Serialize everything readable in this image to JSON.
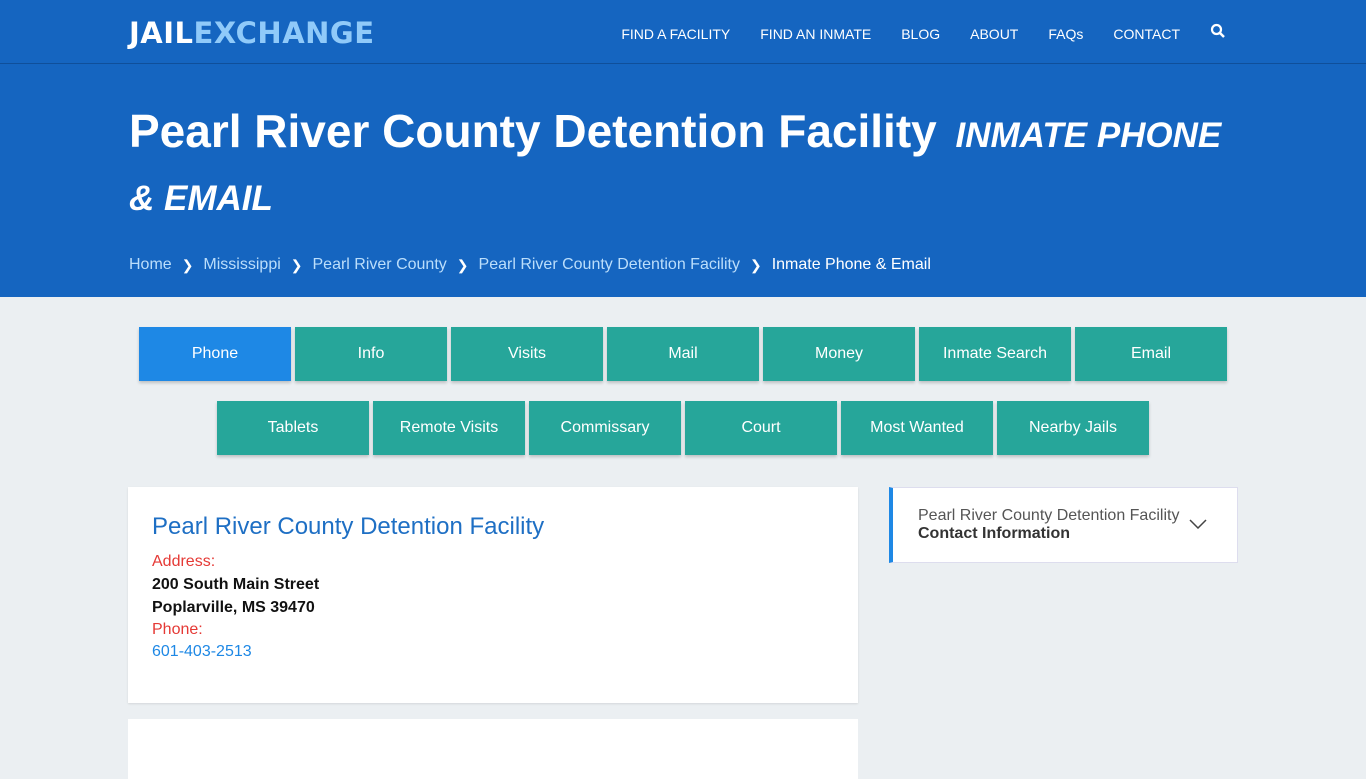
{
  "nav": {
    "logo_a": "JAIL",
    "logo_b": "EXCHANGE",
    "items": [
      "FIND A FACILITY",
      "FIND AN INMATE",
      "BLOG",
      "ABOUT",
      "FAQs",
      "CONTACT"
    ],
    "search_icon": "search-icon"
  },
  "hero": {
    "title": "Pearl River County Detention Facility",
    "subtitle": "INMATE PHONE & EMAIL",
    "breadcrumb": [
      "Home",
      "Mississippi",
      "Pearl River County",
      "Pearl River County Detention Facility"
    ],
    "current": "Inmate Phone & Email"
  },
  "tabs": [
    "Phone",
    "Info",
    "Visits",
    "Mail",
    "Money",
    "Inmate Search",
    "Email",
    "Tablets",
    "Remote Visits",
    "Commissary",
    "Court",
    "Most Wanted",
    "Nearby Jails"
  ],
  "active_tab": "Phone",
  "card": {
    "title": "Pearl River County Detention Facility",
    "address_label": "Address:",
    "address1": "200 South Main Street",
    "address2": "Poplarville, MS 39470",
    "phone_label": "Phone:",
    "phone": "601-403-2513"
  },
  "side": {
    "line1": "Pearl River County Detention Facility",
    "line2": "Contact Information"
  },
  "colors": {
    "brand": "#1565c0",
    "tab": "#26a69a",
    "active_tab": "#1e88e5",
    "label": "#e53935"
  }
}
